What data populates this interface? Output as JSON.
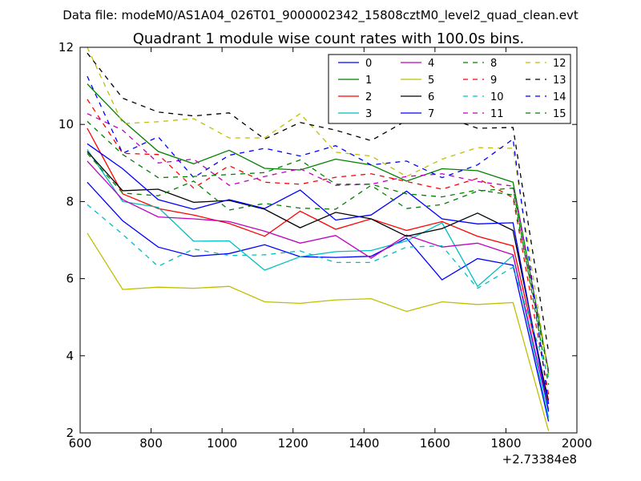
{
  "chart_data": {
    "type": "line",
    "suptitle": "Data file: modeM0/AS1A04_026T01_9000002342_15808cztM0_level2_quad_clean.evt",
    "title": "Quadrant 1 module wise count rates with 100.0s bins.",
    "xlabel": "",
    "ylabel": "",
    "x_offset_label": "+2.73384e8",
    "xlim": [
      600,
      2000
    ],
    "ylim": [
      2,
      12
    ],
    "xticks": [
      600,
      800,
      1000,
      1200,
      1400,
      1600,
      1800,
      2000
    ],
    "yticks": [
      2,
      4,
      6,
      8,
      10,
      12
    ],
    "xtick_labels": [
      "600",
      "800",
      "1000",
      "1200",
      "1400",
      "1600",
      "1800",
      "2000"
    ],
    "ytick_labels": [
      "2",
      "4",
      "6",
      "8",
      "10",
      "12"
    ],
    "grid": false,
    "legend_position": "top-right",
    "x": [
      620,
      720,
      820,
      920,
      1020,
      1120,
      1220,
      1320,
      1420,
      1520,
      1620,
      1720,
      1820,
      1920
    ],
    "series": [
      {
        "name": "0",
        "color": "#0000ff",
        "dash": "solid",
        "values": [
          8.5,
          7.5,
          6.82,
          6.58,
          6.65,
          6.88,
          6.57,
          6.55,
          6.58,
          7.05,
          5.97,
          6.52,
          6.35,
          2.3
        ]
      },
      {
        "name": "1",
        "color": "#008000",
        "dash": "solid",
        "values": [
          11.05,
          10.1,
          9.3,
          8.98,
          9.33,
          8.86,
          8.82,
          9.1,
          8.95,
          8.53,
          8.85,
          8.8,
          8.5,
          3.6
        ]
      },
      {
        "name": "2",
        "color": "#ff0000",
        "dash": "solid",
        "values": [
          9.9,
          8.2,
          7.82,
          7.65,
          7.43,
          7.1,
          7.75,
          7.28,
          7.55,
          7.25,
          7.48,
          7.1,
          6.85,
          2.85
        ]
      },
      {
        "name": "3",
        "color": "#00bfbf",
        "dash": "solid",
        "values": [
          9.35,
          8.0,
          7.85,
          6.97,
          6.98,
          6.22,
          6.57,
          6.7,
          6.73,
          6.98,
          7.45,
          5.8,
          6.6,
          2.4
        ]
      },
      {
        "name": "4",
        "color": "#bf00bf",
        "dash": "solid",
        "values": [
          9.05,
          8.05,
          7.6,
          7.55,
          7.48,
          7.23,
          6.92,
          7.12,
          6.53,
          7.13,
          6.82,
          6.92,
          6.62,
          2.6
        ]
      },
      {
        "name": "5",
        "color": "#bfbf00",
        "dash": "solid",
        "values": [
          7.18,
          5.72,
          5.78,
          5.75,
          5.8,
          5.4,
          5.36,
          5.45,
          5.48,
          5.15,
          5.4,
          5.33,
          5.38,
          2.05
        ]
      },
      {
        "name": "6",
        "color": "#000000",
        "dash": "solid",
        "values": [
          9.3,
          8.28,
          8.32,
          7.98,
          8.03,
          7.8,
          7.32,
          7.72,
          7.55,
          7.1,
          7.3,
          7.7,
          7.25,
          2.75
        ]
      },
      {
        "name": "7",
        "color": "#0000ff",
        "dash": "solid",
        "values": [
          9.5,
          8.85,
          8.05,
          7.8,
          8.05,
          7.82,
          8.3,
          7.52,
          7.65,
          8.27,
          7.55,
          7.42,
          7.45,
          2.55
        ]
      },
      {
        "name": "8",
        "color": "#008000",
        "dash": "dashed",
        "values": [
          9.25,
          8.22,
          8.15,
          8.53,
          7.78,
          7.95,
          7.83,
          7.8,
          8.42,
          7.82,
          7.92,
          8.27,
          8.35,
          3.25
        ]
      },
      {
        "name": "9",
        "color": "#ff0000",
        "dash": "dashed",
        "values": [
          10.65,
          9.25,
          9.22,
          8.35,
          8.93,
          8.5,
          8.45,
          8.63,
          8.72,
          8.52,
          8.32,
          8.6,
          8.1,
          3.0
        ]
      },
      {
        "name": "10",
        "color": "#00bfbf",
        "dash": "dashed",
        "values": [
          7.92,
          7.15,
          6.32,
          6.77,
          6.6,
          6.62,
          6.72,
          6.42,
          6.42,
          6.82,
          6.85,
          5.75,
          6.3,
          3.45
        ]
      },
      {
        "name": "11",
        "color": "#bf00bf",
        "dash": "dashed",
        "values": [
          10.28,
          9.85,
          9.0,
          9.1,
          8.42,
          8.65,
          8.85,
          8.42,
          8.45,
          8.65,
          8.72,
          8.52,
          8.4,
          3.6
        ]
      },
      {
        "name": "12",
        "color": "#bfbf00",
        "dash": "dashed",
        "values": [
          12.0,
          10.02,
          10.07,
          10.15,
          9.65,
          9.65,
          10.28,
          9.28,
          9.18,
          8.65,
          9.1,
          9.4,
          9.38,
          3.5
        ]
      },
      {
        "name": "13",
        "color": "#000000",
        "dash": "dashed",
        "values": [
          11.85,
          10.68,
          10.32,
          10.22,
          10.3,
          9.62,
          10.05,
          9.85,
          9.58,
          10.1,
          10.22,
          9.9,
          9.92,
          4.1
        ]
      },
      {
        "name": "14",
        "color": "#0000ff",
        "dash": "dashed",
        "values": [
          11.25,
          9.25,
          9.68,
          8.62,
          9.2,
          9.38,
          9.18,
          9.45,
          8.95,
          9.05,
          8.62,
          8.95,
          9.62,
          2.75
        ]
      },
      {
        "name": "15",
        "color": "#008000",
        "dash": "dashed",
        "values": [
          10.08,
          9.22,
          8.62,
          8.65,
          8.7,
          8.75,
          9.08,
          8.45,
          8.45,
          8.2,
          8.12,
          8.3,
          8.17,
          3.55
        ]
      }
    ]
  }
}
